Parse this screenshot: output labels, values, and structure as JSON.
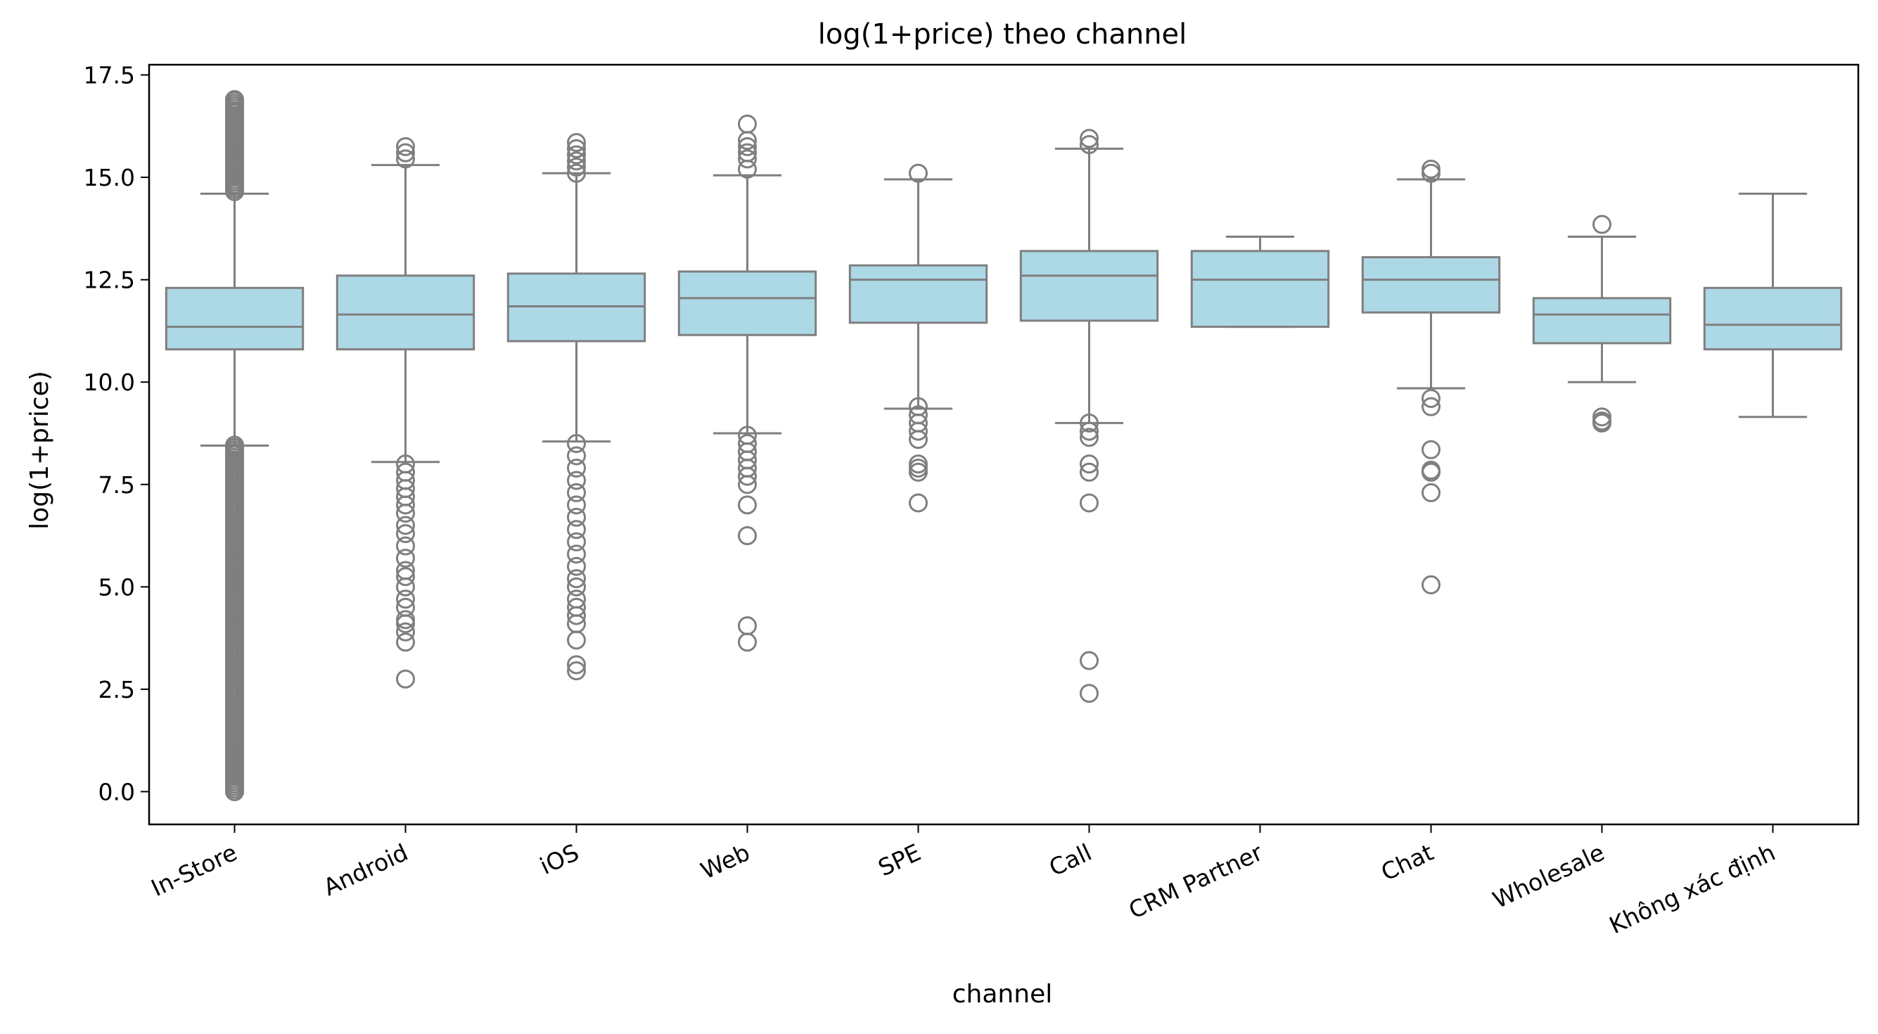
{
  "chart_data": {
    "type": "box",
    "title": "log(1+price) theo channel",
    "xlabel": "channel",
    "ylabel": "log(1+price)",
    "ylim": [
      -0.8,
      17.75
    ],
    "yticks": [
      "0.0",
      "2.5",
      "5.0",
      "7.5",
      "10.0",
      "12.5",
      "15.0",
      "17.5"
    ],
    "ytick_values": [
      0,
      2.5,
      5,
      7.5,
      10,
      12.5,
      15,
      17.5
    ],
    "grid": false,
    "legend": "none",
    "colors": {
      "box_fill": "#add8e6",
      "box_edge": "#7f7f7f",
      "axes": "#000000"
    },
    "categories": [
      "In-Store",
      "Android",
      "iOS",
      "Web",
      "SPE",
      "Call",
      "CRM Partner",
      "Chat",
      "Wholesale",
      "Không xác định"
    ],
    "boxes": [
      {
        "category": "In-Store",
        "whisker_low": 8.45,
        "q1": 10.8,
        "median": 11.35,
        "q3": 12.3,
        "whisker_high": 14.6,
        "outliers_high_range": [
          14.65,
          16.9
        ],
        "outliers_low_range": [
          0.0,
          8.5
        ],
        "outliers": [
          16.9,
          16.75,
          16.6,
          16.3,
          16.0,
          15.7,
          15.4,
          15.1,
          14.8,
          8.4,
          7.8,
          7.0,
          6.0,
          5.0,
          4.0,
          3.0,
          2.0,
          1.0,
          0.5,
          0.0
        ]
      },
      {
        "category": "Android",
        "whisker_low": 8.05,
        "q1": 10.8,
        "median": 11.65,
        "q3": 12.6,
        "whisker_high": 15.3,
        "outliers": [
          15.75,
          15.6,
          15.45,
          8.0,
          7.8,
          7.6,
          7.4,
          7.2,
          7.0,
          6.8,
          6.5,
          6.3,
          6.0,
          5.7,
          5.4,
          5.25,
          5.0,
          4.7,
          4.5,
          4.2,
          4.1,
          3.9,
          3.65,
          2.75
        ]
      },
      {
        "category": "iOS",
        "whisker_low": 8.55,
        "q1": 11.0,
        "median": 11.85,
        "q3": 12.65,
        "whisker_high": 15.1,
        "outliers": [
          15.85,
          15.7,
          15.55,
          15.4,
          15.25,
          15.1,
          8.5,
          8.2,
          7.9,
          7.6,
          7.3,
          7.0,
          6.7,
          6.4,
          6.1,
          5.8,
          5.5,
          5.2,
          5.0,
          4.7,
          4.5,
          4.3,
          4.1,
          3.7,
          3.1,
          2.95
        ]
      },
      {
        "category": "Web",
        "whisker_low": 8.75,
        "q1": 11.15,
        "median": 12.05,
        "q3": 12.7,
        "whisker_high": 15.05,
        "outliers": [
          16.3,
          15.9,
          15.75,
          15.6,
          15.45,
          15.2,
          8.7,
          8.5,
          8.3,
          8.1,
          7.9,
          7.7,
          7.5,
          7.0,
          6.25,
          4.05,
          3.65
        ]
      },
      {
        "category": "SPE",
        "whisker_low": 9.35,
        "q1": 11.45,
        "median": 12.5,
        "q3": 12.85,
        "whisker_high": 14.95,
        "outliers": [
          15.1,
          9.4,
          9.2,
          9.0,
          8.8,
          8.6,
          8.0,
          7.9,
          7.8,
          7.05
        ]
      },
      {
        "category": "Call",
        "whisker_low": 9.0,
        "q1": 11.5,
        "median": 12.6,
        "q3": 13.2,
        "whisker_high": 15.7,
        "outliers": [
          15.95,
          15.8,
          9.0,
          8.8,
          8.65,
          8.0,
          7.8,
          7.05,
          3.2,
          2.4
        ]
      },
      {
        "category": "CRM Partner",
        "whisker_low": 11.35,
        "q1": 11.35,
        "median": 12.5,
        "q3": 13.2,
        "whisker_high": 13.55,
        "outliers": []
      },
      {
        "category": "Chat",
        "whisker_low": 9.85,
        "q1": 11.7,
        "median": 12.5,
        "q3": 13.05,
        "whisker_high": 14.95,
        "outliers": [
          15.2,
          15.1,
          9.6,
          9.4,
          8.35,
          7.85,
          7.8,
          7.3,
          5.05
        ]
      },
      {
        "category": "Wholesale",
        "whisker_low": 10.0,
        "q1": 10.95,
        "median": 11.65,
        "q3": 12.05,
        "whisker_high": 13.55,
        "outliers": [
          13.85,
          9.15,
          9.05,
          9.0
        ]
      },
      {
        "category": "Không xác định",
        "whisker_low": 9.15,
        "q1": 10.8,
        "median": 11.4,
        "q3": 12.3,
        "whisker_high": 14.6,
        "outliers": []
      }
    ]
  }
}
